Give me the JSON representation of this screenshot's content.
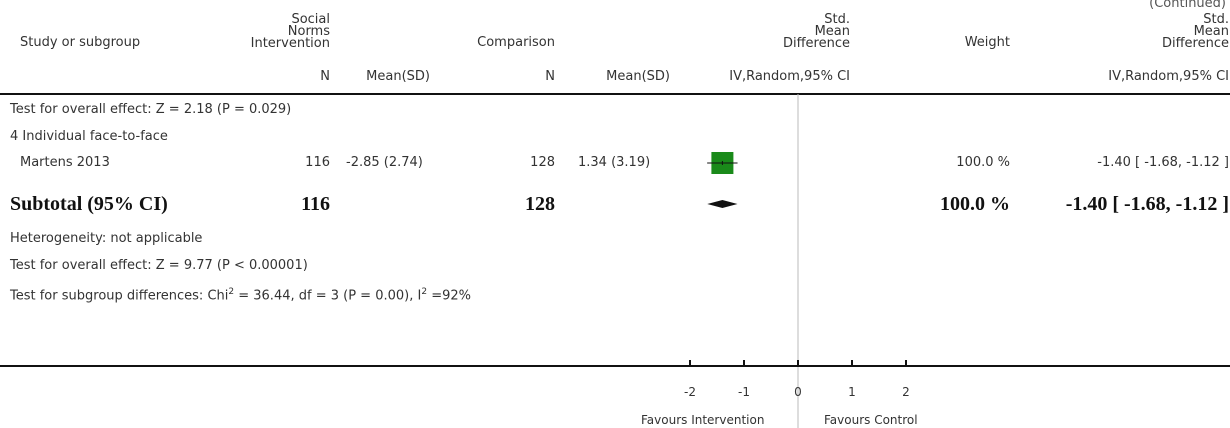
{
  "continued_label": "(Continued)",
  "headers": {
    "study": "Study or subgroup",
    "intervention": [
      "Social",
      "Norms",
      "Intervention"
    ],
    "comparison": "Comparison",
    "smd_plot": [
      "Std.",
      "Mean",
      "Difference"
    ],
    "weight": "Weight",
    "smd_right": [
      "Std.",
      "Mean",
      "Difference"
    ],
    "n1": "N",
    "mean_sd1": "Mean(SD)",
    "n2": "N",
    "mean_sd2": "Mean(SD)",
    "method_plot": "IV,Random,95% CI",
    "method_right": "IV,Random,95% CI"
  },
  "rows": {
    "prev_overall": "Test for overall effect: Z = 2.18 (P = 0.029)",
    "subgroup_title": "4 Individual face-to-face",
    "study": {
      "name": "Martens 2013",
      "n1": "116",
      "mean_sd1": "-2.85 (2.74)",
      "n2": "128",
      "mean_sd2": "1.34 (3.19)",
      "weight": "100.0 %",
      "ci": "-1.40 [ -1.68, -1.12 ]"
    },
    "subtotal": {
      "label": "Subtotal (95% CI)",
      "n1": "116",
      "n2": "128",
      "weight": "100.0 %",
      "ci": "-1.40 [ -1.68, -1.12 ]"
    },
    "heterogeneity": "Heterogeneity: not applicable",
    "overall": "Test for overall effect: Z = 9.77 (P < 0.00001)",
    "subgroup_diff_prefix": "Test for subgroup differences: Chi",
    "subgroup_diff_middle": " = 36.44, df = 3 (P = 0.00), I",
    "subgroup_diff_suffix": " =92%",
    "superscript": "2"
  },
  "axis": {
    "favours_left": "Favours Intervention",
    "favours_right": "Favours Control"
  },
  "chart_data": {
    "type": "forest",
    "title": "",
    "xlabel": "",
    "ylabel": "",
    "xlim": [
      -2,
      2
    ],
    "ticks": [
      -2,
      -1,
      0,
      1,
      2
    ],
    "tick_labels": [
      "-2",
      "-1",
      "0",
      "1",
      "2"
    ],
    "null_line": 0,
    "studies": [
      {
        "name": "Martens 2013",
        "estimate": -1.4,
        "ci_low": -1.68,
        "ci_high": -1.12,
        "weight": 100.0
      }
    ],
    "subtotal": {
      "estimate": -1.4,
      "ci_low": -1.68,
      "ci_high": -1.12
    },
    "colors": {
      "box": "#1a8a1a",
      "diamond": "#111111",
      "axis": "#111111",
      "null_line": "#bbbbbb"
    }
  }
}
